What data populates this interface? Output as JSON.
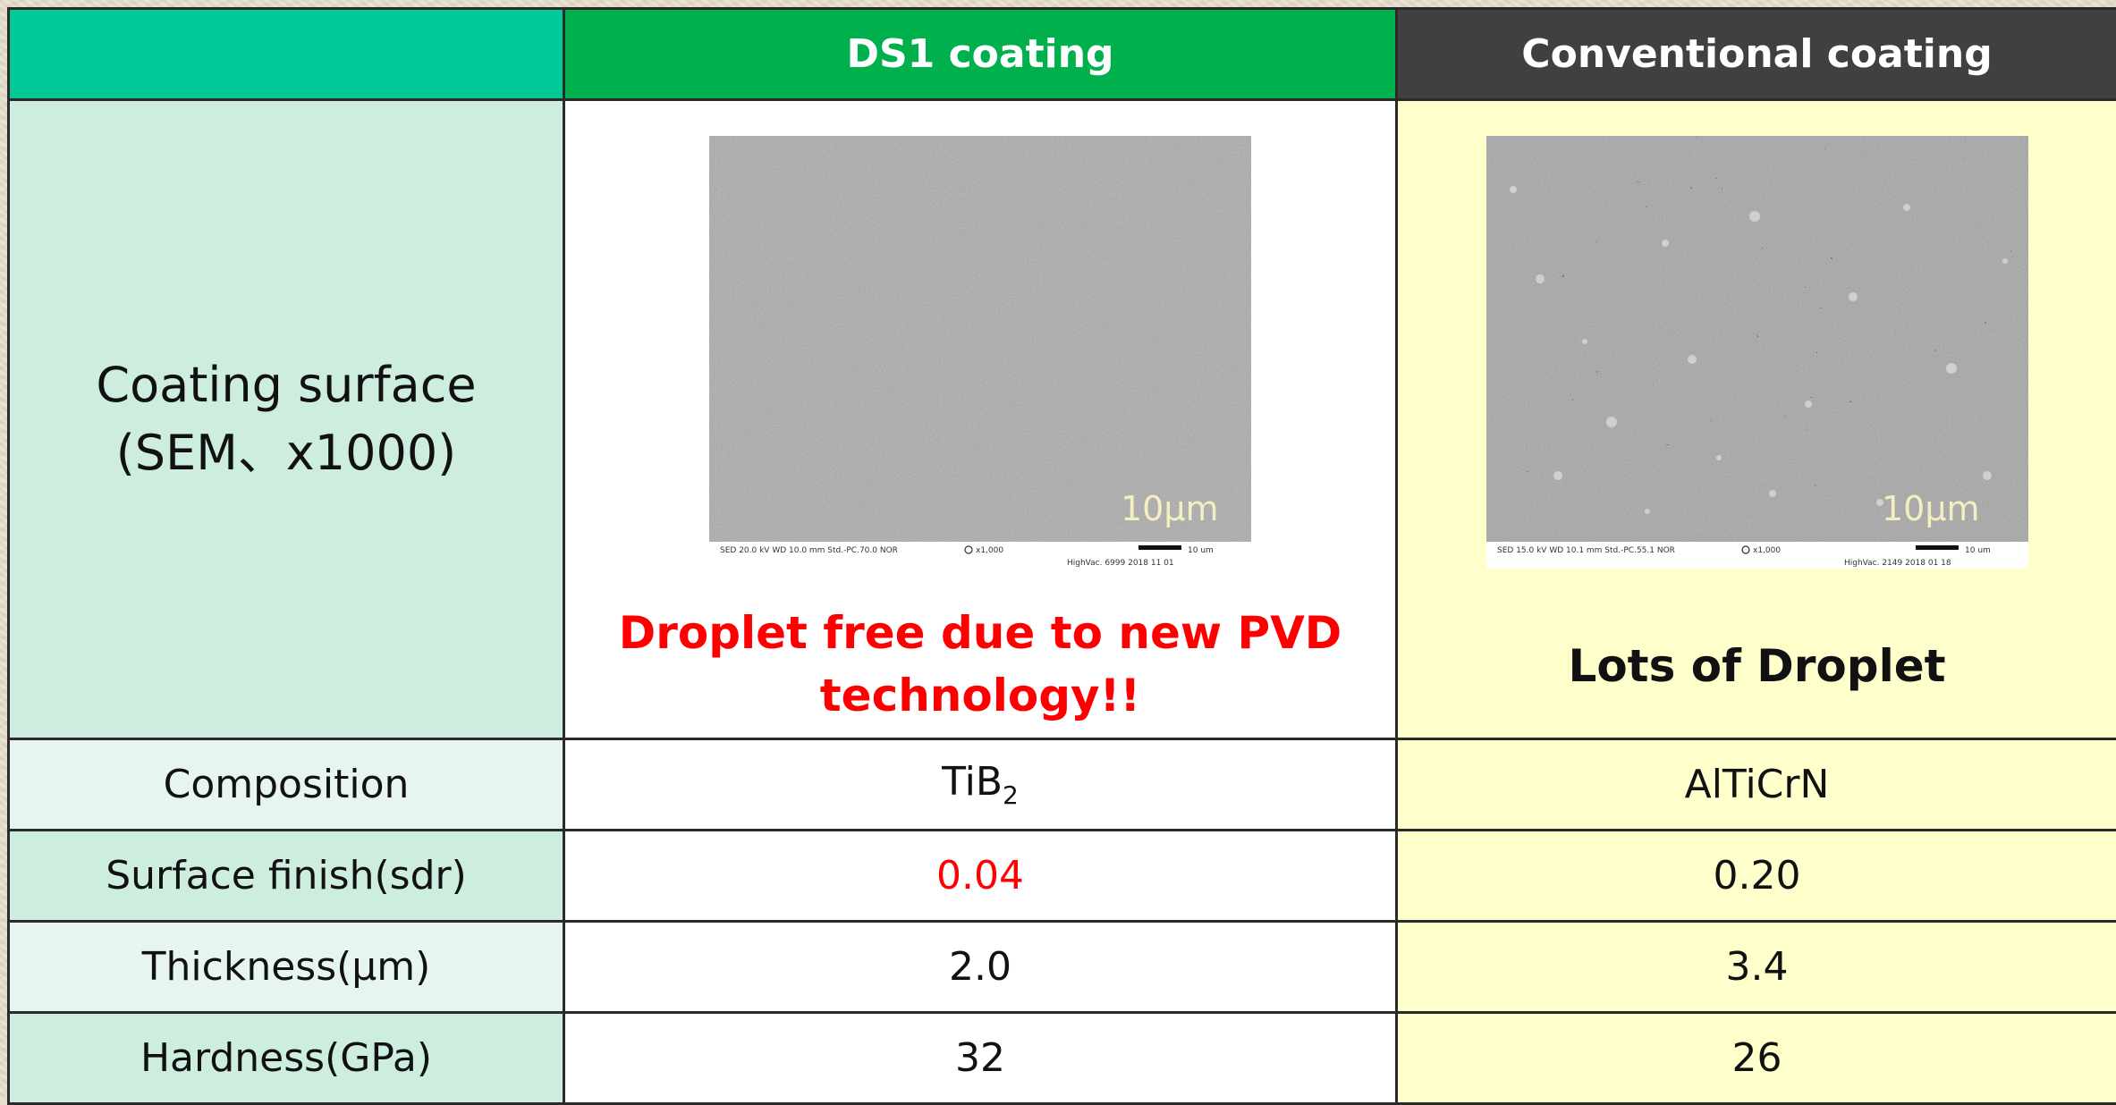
{
  "header": {
    "blank": "",
    "ds1": "DS1 coating",
    "conventional": "Conventional coating"
  },
  "surface_row": {
    "label_line1": "Coating surface",
    "label_line2": "(SEM、x1000)",
    "ds1": {
      "scale_label": "10μm",
      "meta_left": "SED   20.0 kV   WD 10.0 mm     Std.-PC.70.0     NOR",
      "meta_mag": "x1,000",
      "meta_scale": "10 um",
      "meta_bottom": "HighVac.   6999     2018 11 01",
      "caption": "Droplet free due to new PVD technology!!"
    },
    "conventional": {
      "scale_label": "10μm",
      "meta_left": "SED   15.0 kV   WD 10.1 mm     Std.-PC.55.1     NOR",
      "meta_mag": "x1,000",
      "meta_scale": "10 um",
      "meta_bottom": "HighVac.   2149     2018 01 18",
      "caption": "Lots of Droplet"
    }
  },
  "rows": [
    {
      "label": "Composition",
      "ds1_base": "TiB",
      "ds1_sub": "2",
      "conventional": "AlTiCrN"
    },
    {
      "label": "Surface finish(sdr)",
      "ds1": "0.04",
      "conventional": "0.20"
    },
    {
      "label": "Thickness(μm)",
      "ds1": "2.0",
      "conventional": "3.4"
    },
    {
      "label": "Hardness(GPa)",
      "ds1": "32",
      "conventional": "26"
    }
  ],
  "colors": {
    "header_blank": "#00c896",
    "header_ds1": "#00b04d",
    "header_conventional": "#404040",
    "label_bg": "#cdeddf",
    "conventional_bg": "#ffffcc",
    "highlight_red": "#ff0000"
  }
}
